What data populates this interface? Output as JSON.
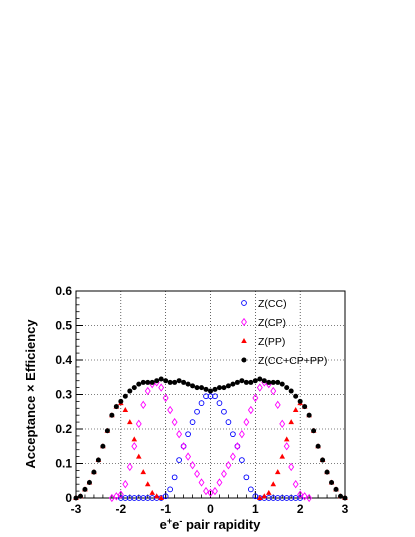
{
  "chart_data": {
    "type": "scatter",
    "title": "",
    "xlabel_parts": [
      "e",
      "+",
      "e",
      "-",
      " pair rapidity"
    ],
    "ylabel": "Acceptance × Efficiency",
    "xlim": [
      -3,
      3
    ],
    "ylim": [
      0,
      0.6
    ],
    "x_ticks": [
      "-3",
      "-2",
      "-1",
      "0",
      "1",
      "2",
      "3"
    ],
    "y_ticks": [
      "0",
      "0.1",
      "0.2",
      "0.3",
      "0.4",
      "0.5",
      "0.6"
    ],
    "grid": true,
    "legend_position": "top-right",
    "series": [
      {
        "name": "Z(CC)",
        "marker": "open-circle",
        "color": "#0000ff",
        "x": [
          -2.0,
          -1.9,
          -1.8,
          -1.7,
          -1.6,
          -1.5,
          -1.4,
          -1.3,
          -1.2,
          -1.1,
          -1.0,
          -0.9,
          -0.8,
          -0.7,
          -0.6,
          -0.5,
          -0.4,
          -0.3,
          -0.2,
          -0.1,
          0.0,
          0.1,
          0.2,
          0.3,
          0.4,
          0.5,
          0.6,
          0.7,
          0.8,
          0.9,
          1.0,
          1.1,
          1.2,
          1.3,
          1.4,
          1.5,
          1.6,
          1.7,
          1.8,
          1.9,
          2.0
        ],
        "y": [
          0,
          0,
          0,
          0,
          0,
          0,
          0,
          0,
          0,
          0,
          0.005,
          0.025,
          0.06,
          0.11,
          0.15,
          0.185,
          0.22,
          0.25,
          0.275,
          0.295,
          0.295,
          0.295,
          0.275,
          0.25,
          0.22,
          0.185,
          0.15,
          0.11,
          0.06,
          0.025,
          0.005,
          0,
          0,
          0,
          0,
          0,
          0,
          0,
          0,
          0,
          0
        ]
      },
      {
        "name": "Z(CP)",
        "marker": "open-diamond",
        "color": "#ff00ff",
        "x": [
          -2.2,
          -2.1,
          -2.0,
          -1.9,
          -1.8,
          -1.7,
          -1.6,
          -1.5,
          -1.4,
          -1.3,
          -1.2,
          -1.1,
          -1.0,
          -0.9,
          -0.8,
          -0.7,
          -0.6,
          -0.5,
          -0.4,
          -0.3,
          -0.2,
          -0.1,
          0.0,
          0.1,
          0.2,
          0.3,
          0.4,
          0.5,
          0.6,
          0.7,
          0.8,
          0.9,
          1.0,
          1.1,
          1.2,
          1.3,
          1.4,
          1.5,
          1.6,
          1.7,
          1.8,
          1.9,
          2.0,
          2.1,
          2.2
        ],
        "y": [
          0,
          0.005,
          0.01,
          0.04,
          0.09,
          0.15,
          0.215,
          0.27,
          0.31,
          0.33,
          0.335,
          0.32,
          0.29,
          0.255,
          0.22,
          0.185,
          0.15,
          0.12,
          0.095,
          0.07,
          0.045,
          0.02,
          0.015,
          0.02,
          0.045,
          0.07,
          0.095,
          0.12,
          0.15,
          0.185,
          0.22,
          0.255,
          0.29,
          0.32,
          0.335,
          0.33,
          0.31,
          0.27,
          0.215,
          0.15,
          0.09,
          0.04,
          0.01,
          0.005,
          0
        ]
      },
      {
        "name": "Z(PP)",
        "marker": "filled-triangle",
        "color": "#ff0000",
        "x": [
          -3.0,
          -2.9,
          -2.8,
          -2.7,
          -2.6,
          -2.5,
          -2.4,
          -2.3,
          -2.2,
          -2.1,
          -2.0,
          -1.9,
          -1.8,
          -1.7,
          -1.6,
          -1.5,
          -1.4,
          -1.3,
          -1.2,
          -1.1,
          1.1,
          1.2,
          1.3,
          1.4,
          1.5,
          1.6,
          1.7,
          1.8,
          1.9,
          2.0,
          2.1,
          2.2,
          2.3,
          2.4,
          2.5,
          2.6,
          2.7,
          2.8,
          2.9,
          3.0
        ],
        "y": [
          0,
          0.005,
          0.025,
          0.045,
          0.075,
          0.11,
          0.15,
          0.195,
          0.24,
          0.265,
          0.275,
          0.255,
          0.22,
          0.17,
          0.12,
          0.075,
          0.04,
          0.015,
          0.005,
          0,
          0,
          0.005,
          0.015,
          0.04,
          0.075,
          0.12,
          0.17,
          0.22,
          0.255,
          0.275,
          0.265,
          0.24,
          0.195,
          0.15,
          0.11,
          0.075,
          0.045,
          0.025,
          0.005,
          0
        ]
      },
      {
        "name": "Z(CC+CP+PP)",
        "marker": "filled-circle",
        "color": "#000000",
        "x": [
          -3.0,
          -2.9,
          -2.8,
          -2.7,
          -2.6,
          -2.5,
          -2.4,
          -2.3,
          -2.2,
          -2.1,
          -2.0,
          -1.9,
          -1.8,
          -1.7,
          -1.6,
          -1.5,
          -1.4,
          -1.3,
          -1.2,
          -1.1,
          -1.0,
          -0.9,
          -0.8,
          -0.7,
          -0.6,
          -0.5,
          -0.4,
          -0.3,
          -0.2,
          -0.1,
          0.0,
          0.1,
          0.2,
          0.3,
          0.4,
          0.5,
          0.6,
          0.7,
          0.8,
          0.9,
          1.0,
          1.1,
          1.2,
          1.3,
          1.4,
          1.5,
          1.6,
          1.7,
          1.8,
          1.9,
          2.0,
          2.1,
          2.2,
          2.3,
          2.4,
          2.5,
          2.6,
          2.7,
          2.8,
          2.9,
          3.0
        ],
        "y": [
          0,
          0.005,
          0.025,
          0.045,
          0.075,
          0.11,
          0.15,
          0.195,
          0.24,
          0.265,
          0.28,
          0.295,
          0.31,
          0.32,
          0.33,
          0.335,
          0.335,
          0.335,
          0.34,
          0.345,
          0.34,
          0.335,
          0.335,
          0.34,
          0.335,
          0.33,
          0.325,
          0.32,
          0.32,
          0.315,
          0.31,
          0.315,
          0.32,
          0.32,
          0.325,
          0.33,
          0.335,
          0.34,
          0.335,
          0.335,
          0.34,
          0.345,
          0.34,
          0.335,
          0.335,
          0.335,
          0.33,
          0.32,
          0.31,
          0.295,
          0.28,
          0.265,
          0.24,
          0.195,
          0.15,
          0.11,
          0.075,
          0.045,
          0.025,
          0.005,
          0
        ]
      }
    ]
  }
}
